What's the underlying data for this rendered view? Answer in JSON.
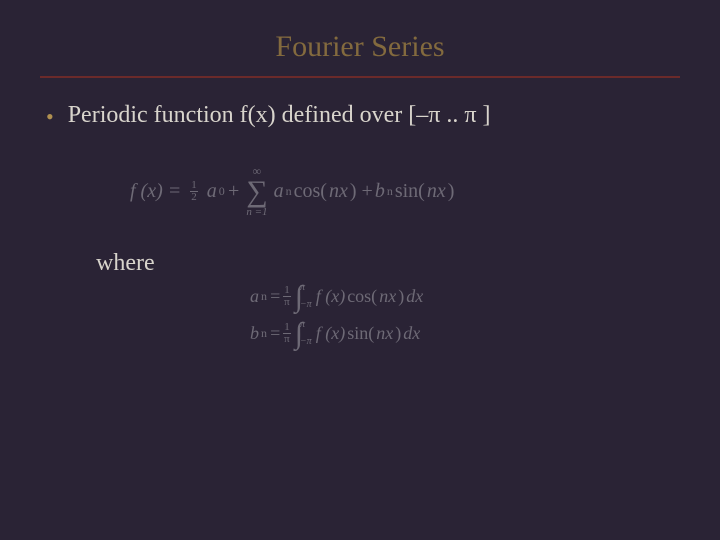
{
  "colors": {
    "background": "#2a2335",
    "title": "#836a3e",
    "rule": "#6b2a2a",
    "text": "#d8d4cc",
    "bullet": "#b09050",
    "equation": "#6e6a76"
  },
  "title": "Fourier Series",
  "bullet_text": "Periodic function f(x) defined over [–π .. π ]",
  "eq_main": {
    "lhs": "f (x) =",
    "half_num": "1",
    "half_den": "2",
    "a0": "a",
    "a0_sub": "0",
    "plus1": " + ",
    "sum_top": "∞",
    "sum_sym": "∑",
    "sum_bot": "n =1",
    "an": "a",
    "an_sub": "n",
    "cos": " cos(",
    "nx1": "nx",
    "close1": ") + ",
    "bn": "b",
    "bn_sub": "n",
    "sin": " sin(",
    "nx2": "nx",
    "close2": ")"
  },
  "where": "where",
  "eq_an": {
    "lhs_a": "a",
    "lhs_sub": "n",
    "eq": " = ",
    "frac_num": "1",
    "frac_den": "π",
    "int_top": "π",
    "int_bot": "−π",
    "fx": " f (x) ",
    "cos": "cos(",
    "nx": "nx",
    "close": ") ",
    "dx": "dx"
  },
  "eq_bn": {
    "lhs_b": "b",
    "lhs_sub": "n",
    "eq": " = ",
    "frac_num": "1",
    "frac_den": "π",
    "int_top": "π",
    "int_bot": "−π",
    "fx": " f (x) ",
    "sin": "sin(",
    "nx": "nx",
    "close": ") ",
    "dx": "dx"
  }
}
